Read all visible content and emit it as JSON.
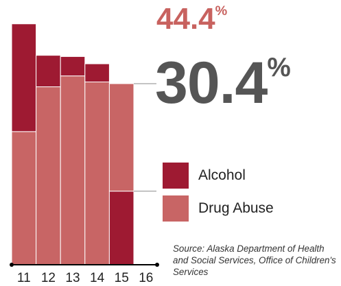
{
  "chart_data": {
    "type": "bar",
    "stacked": true,
    "categories": [
      "11",
      "12",
      "13",
      "14",
      "15",
      "16"
    ],
    "ylim": [
      0,
      100
    ],
    "series": [
      {
        "name": "Drug Abuse",
        "values": [
          55.0,
          73.5,
          78.0,
          75.5,
          44.4,
          null
        ]
      },
      {
        "name": "Alcohol",
        "values": [
          44.5,
          13.0,
          8.0,
          7.5,
          30.4,
          null
        ]
      }
    ],
    "callouts": [
      {
        "series": "Drug Abuse",
        "category": "15",
        "number": "44.4",
        "unit": "%"
      },
      {
        "series": "Alcohol",
        "category": "15",
        "number": "30.4",
        "unit": "%"
      }
    ],
    "legend": [
      {
        "label": "Alcohol",
        "color": "#9e1a32"
      },
      {
        "label": "Drug Abuse",
        "color": "#c86565"
      }
    ],
    "legend_position": "right",
    "grid": false,
    "source": "Source: Alaska Department of Health and Social Services, Office of Children's Services"
  },
  "colors": {
    "alcohol": "#9e1a32",
    "drug": "#c86565",
    "drug_text": "#c8625f",
    "alcohol_text": "#555555",
    "axis": "#000000",
    "connector": "#888888"
  }
}
